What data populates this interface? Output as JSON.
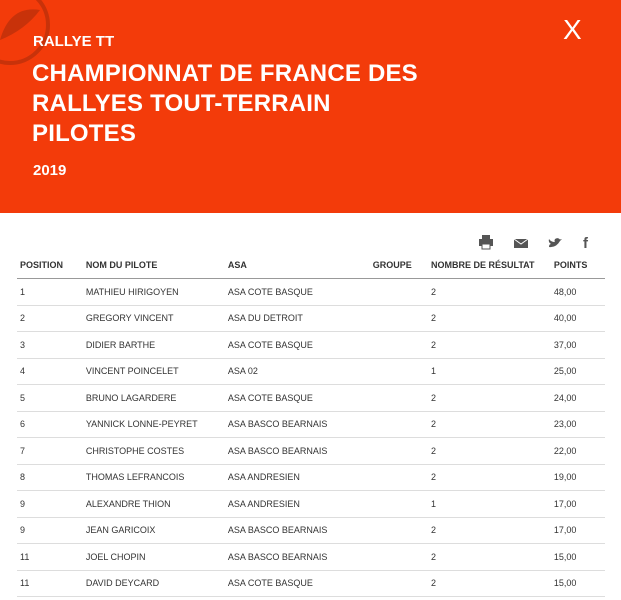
{
  "header": {
    "category": "RALLYE TT",
    "title_lines": [
      "CHAMPIONNAT DE FRANCE DES",
      "RALLYES TOUT-TERRAIN",
      "PILOTES"
    ],
    "year": "2019",
    "close": "X"
  },
  "table": {
    "columns": [
      "POSITION",
      "NOM DU PILOTE",
      "ASA",
      "GROUPE",
      "NOMBRE DE RÉSULTAT",
      "POINTS"
    ],
    "rows": [
      [
        "1",
        "MATHIEU HIRIGOYEN",
        "ASA COTE BASQUE",
        "",
        "2",
        "48,00"
      ],
      [
        "2",
        "GREGORY VINCENT",
        "ASA DU DETROIT",
        "",
        "2",
        "40,00"
      ],
      [
        "3",
        "DIDIER BARTHE",
        "ASA COTE BASQUE",
        "",
        "2",
        "37,00"
      ],
      [
        "4",
        "VINCENT POINCELET",
        "ASA 02",
        "",
        "1",
        "25,00"
      ],
      [
        "5",
        "BRUNO LAGARDERE",
        "ASA COTE BASQUE",
        "",
        "2",
        "24,00"
      ],
      [
        "6",
        "YANNICK LONNE-PEYRET",
        "ASA BASCO BEARNAIS",
        "",
        "2",
        "23,00"
      ],
      [
        "7",
        "CHRISTOPHE COSTES",
        "ASA BASCO BEARNAIS",
        "",
        "2",
        "22,00"
      ],
      [
        "8",
        "THOMAS LEFRANCOIS",
        "ASA ANDRESIEN",
        "",
        "2",
        "19,00"
      ],
      [
        "9",
        "ALEXANDRE THION",
        "ASA ANDRESIEN",
        "",
        "1",
        "17,00"
      ],
      [
        "9",
        "JEAN GARICOIX",
        "ASA BASCO BEARNAIS",
        "",
        "2",
        "17,00"
      ],
      [
        "11",
        "JOEL CHOPIN",
        "ASA BASCO BEARNAIS",
        "",
        "2",
        "15,00"
      ],
      [
        "11",
        "DAVID DEYCARD",
        "ASA COTE BASQUE",
        "",
        "2",
        "15,00"
      ]
    ]
  }
}
